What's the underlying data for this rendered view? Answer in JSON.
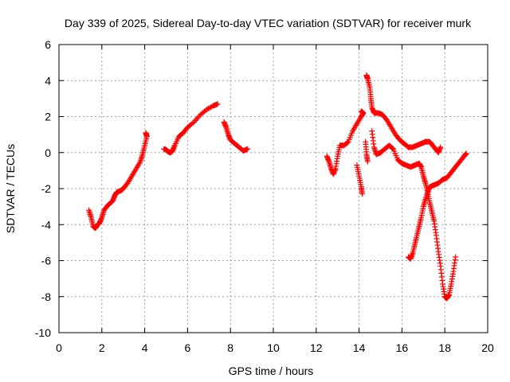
{
  "chart_data": {
    "type": "scatter",
    "title": "Day 339 of 2025, Sidereal Day-to-day VTEC variation (SDTVAR) for receiver murk",
    "xlabel": "GPS time / hours",
    "ylabel": "SDTVAR / TECUs",
    "xlim": [
      0,
      20
    ],
    "ylim": [
      -10,
      6
    ],
    "xticks": [
      "0",
      "2",
      "4",
      "6",
      "8",
      "10",
      "12",
      "14",
      "16",
      "18",
      "20"
    ],
    "yticks": [
      "-10",
      "-8",
      "-6",
      "-4",
      "-2",
      "0",
      "2",
      "4",
      "6"
    ],
    "grid": true,
    "marker": "+",
    "color": "#ff0000",
    "series": [
      {
        "segments": [
          [
            [
              1.4,
              -3.2
            ],
            [
              1.5,
              -3.6
            ],
            [
              1.6,
              -4.1
            ],
            [
              1.7,
              -4.2
            ],
            [
              1.8,
              -4.0
            ],
            [
              1.9,
              -3.9
            ],
            [
              2.0,
              -3.6
            ],
            [
              2.1,
              -3.2
            ],
            [
              2.3,
              -2.9
            ],
            [
              2.5,
              -2.7
            ],
            [
              2.6,
              -2.4
            ],
            [
              2.7,
              -2.2
            ],
            [
              2.9,
              -2.1
            ],
            [
              3.0,
              -2.0
            ],
            [
              3.2,
              -1.7
            ],
            [
              3.4,
              -1.3
            ],
            [
              3.6,
              -0.9
            ],
            [
              3.8,
              -0.5
            ],
            [
              3.9,
              -0.1
            ],
            [
              4.0,
              0.4
            ],
            [
              4.1,
              0.9
            ],
            [
              4.05,
              1.1
            ]
          ],
          [
            [
              4.9,
              0.2
            ],
            [
              5.0,
              0.15
            ],
            [
              5.1,
              0.05
            ],
            [
              5.2,
              0.0
            ],
            [
              5.3,
              0.1
            ],
            [
              5.4,
              0.4
            ],
            [
              5.6,
              0.9
            ],
            [
              5.8,
              1.1
            ],
            [
              6.0,
              1.4
            ],
            [
              6.3,
              1.7
            ],
            [
              6.6,
              2.1
            ],
            [
              6.9,
              2.4
            ],
            [
              7.2,
              2.6
            ],
            [
              7.4,
              2.7
            ]
          ],
          [
            [
              7.7,
              1.7
            ],
            [
              7.8,
              1.4
            ],
            [
              7.9,
              1.0
            ],
            [
              8.0,
              0.7
            ],
            [
              8.2,
              0.5
            ],
            [
              8.4,
              0.3
            ],
            [
              8.6,
              0.1
            ],
            [
              8.8,
              0.2
            ]
          ],
          [
            [
              12.5,
              -0.2
            ],
            [
              12.6,
              -0.5
            ],
            [
              12.7,
              -0.9
            ],
            [
              12.8,
              -1.2
            ],
            [
              12.9,
              -0.9
            ],
            [
              13.0,
              -0.2
            ],
            [
              13.1,
              0.4
            ],
            [
              13.3,
              0.4
            ],
            [
              13.5,
              0.6
            ],
            [
              13.7,
              1.2
            ],
            [
              13.9,
              1.6
            ],
            [
              14.1,
              2.0
            ],
            [
              14.2,
              2.2
            ],
            [
              14.1,
              2.3
            ]
          ],
          [
            [
              13.9,
              -0.7
            ],
            [
              14.0,
              -1.3
            ],
            [
              14.1,
              -1.9
            ],
            [
              14.15,
              -2.3
            ]
          ],
          [
            [
              14.3,
              0.6
            ],
            [
              14.35,
              -0.1
            ],
            [
              14.4,
              -0.5
            ]
          ],
          [
            [
              14.35,
              4.3
            ],
            [
              14.4,
              4.1
            ],
            [
              14.5,
              3.6
            ],
            [
              14.55,
              3.0
            ],
            [
              14.6,
              2.5
            ],
            [
              14.7,
              2.2
            ],
            [
              14.9,
              2.2
            ],
            [
              15.1,
              2.1
            ],
            [
              15.3,
              1.8
            ],
            [
              15.5,
              1.4
            ],
            [
              15.7,
              1.0
            ],
            [
              15.9,
              0.7
            ],
            [
              16.1,
              0.5
            ],
            [
              16.3,
              0.3
            ],
            [
              16.5,
              0.3
            ],
            [
              16.7,
              0.4
            ],
            [
              16.9,
              0.5
            ],
            [
              17.1,
              0.6
            ],
            [
              17.3,
              0.6
            ],
            [
              17.5,
              0.3
            ],
            [
              17.7,
              0.0
            ],
            [
              17.8,
              0.3
            ]
          ],
          [
            [
              14.6,
              1.2
            ],
            [
              14.7,
              0.3
            ],
            [
              14.8,
              -0.1
            ],
            [
              15.0,
              0.0
            ],
            [
              15.2,
              0.2
            ],
            [
              15.4,
              0.4
            ],
            [
              15.6,
              0.2
            ],
            [
              15.8,
              -0.4
            ],
            [
              16.0,
              -0.6
            ],
            [
              16.2,
              -0.7
            ],
            [
              16.4,
              -0.8
            ],
            [
              16.6,
              -0.7
            ],
            [
              16.8,
              -0.6
            ],
            [
              16.9,
              -0.8
            ],
            [
              17.0,
              -1.3
            ],
            [
              17.1,
              -1.7
            ],
            [
              17.2,
              -2.2
            ],
            [
              17.3,
              -2.8
            ],
            [
              17.4,
              -3.3
            ],
            [
              17.5,
              -3.8
            ],
            [
              17.6,
              -4.6
            ],
            [
              17.7,
              -5.5
            ],
            [
              17.8,
              -6.3
            ],
            [
              17.9,
              -7.3
            ],
            [
              18.0,
              -8.0
            ],
            [
              18.1,
              -8.1
            ],
            [
              18.2,
              -7.9
            ],
            [
              18.3,
              -7.3
            ],
            [
              18.4,
              -6.6
            ],
            [
              18.5,
              -5.8
            ]
          ],
          [
            [
              16.3,
              -5.8
            ],
            [
              16.4,
              -5.9
            ],
            [
              16.5,
              -5.6
            ],
            [
              16.6,
              -5.1
            ],
            [
              16.7,
              -4.6
            ],
            [
              16.8,
              -4.1
            ],
            [
              16.9,
              -3.6
            ],
            [
              17.0,
              -3.0
            ],
            [
              17.1,
              -2.6
            ],
            [
              17.2,
              -2.2
            ],
            [
              17.3,
              -1.9
            ],
            [
              17.5,
              -1.8
            ],
            [
              17.7,
              -1.7
            ],
            [
              17.9,
              -1.5
            ],
            [
              18.1,
              -1.4
            ],
            [
              18.3,
              -1.1
            ],
            [
              18.5,
              -0.8
            ],
            [
              18.7,
              -0.5
            ],
            [
              18.9,
              -0.2
            ],
            [
              19.0,
              -0.05
            ]
          ]
        ]
      }
    ]
  }
}
